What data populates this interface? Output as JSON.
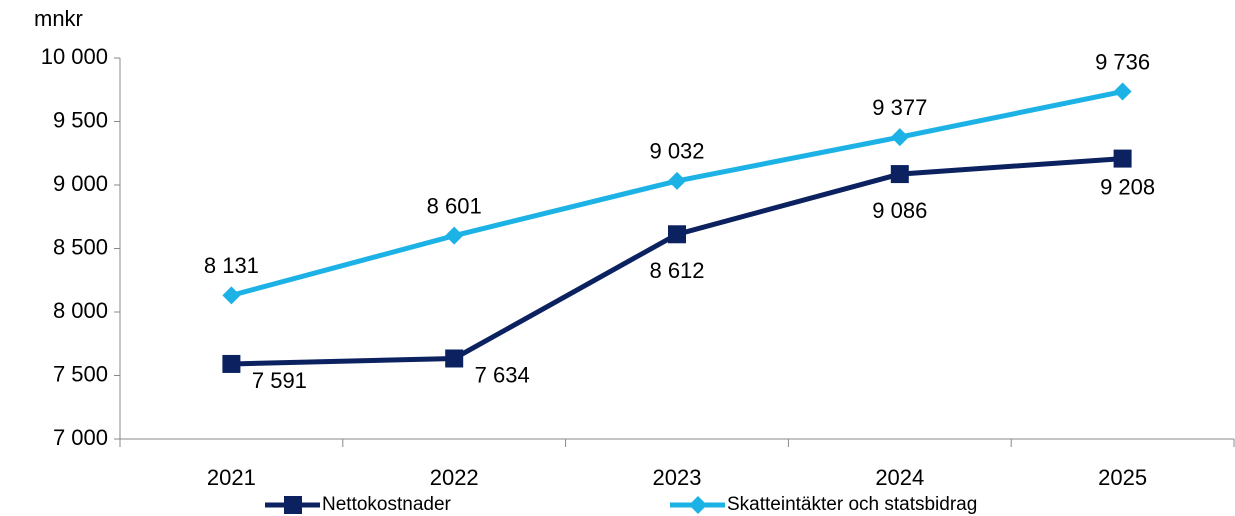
{
  "chart_data": {
    "type": "line",
    "y_axis_label": "mnkr",
    "categories": [
      "2021",
      "2022",
      "2023",
      "2024",
      "2025"
    ],
    "series": [
      {
        "name": "Nettokostnader",
        "color": "#0c2260",
        "marker": "square",
        "values": [
          7591,
          7634,
          8612,
          9086,
          9208
        ],
        "value_labels": [
          "7 591",
          "7 634",
          "8 612",
          "9 086",
          "9 208"
        ]
      },
      {
        "name": "Skatteintäkter och statsbidrag",
        "color": "#1cb2e6",
        "marker": "diamond",
        "values": [
          8131,
          8601,
          9032,
          9377,
          9736
        ],
        "value_labels": [
          "8 131",
          "8 601",
          "9 032",
          "9 377",
          "9 736"
        ]
      }
    ],
    "ylim": [
      7000,
      10000
    ],
    "yticks": [
      {
        "value": 7000,
        "label": "7 000"
      },
      {
        "value": 7500,
        "label": "7 500"
      },
      {
        "value": 8000,
        "label": "8 000"
      },
      {
        "value": 8500,
        "label": "8 500"
      },
      {
        "value": 9000,
        "label": "9 000"
      },
      {
        "value": 9500,
        "label": "9 500"
      },
      {
        "value": 10000,
        "label": "10 000"
      }
    ],
    "legend": "bottom"
  }
}
